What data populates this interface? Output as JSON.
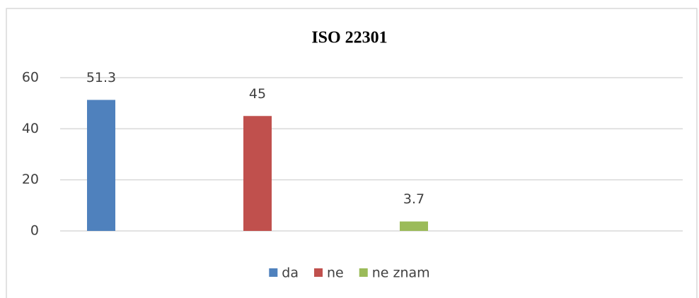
{
  "chart_data": {
    "type": "bar",
    "title": "ISO 22301",
    "series": [
      {
        "name": "da",
        "color": "#4f81bd",
        "values": [
          51.3
        ]
      },
      {
        "name": "ne",
        "color": "#c0504d",
        "values": [
          45
        ]
      },
      {
        "name": "ne znam",
        "color": "#9bbb59",
        "values": [
          3.7
        ]
      }
    ],
    "ylim": [
      0,
      60
    ],
    "yticks": [
      0,
      20,
      40,
      60
    ],
    "grid": true,
    "legend": "bottom"
  }
}
